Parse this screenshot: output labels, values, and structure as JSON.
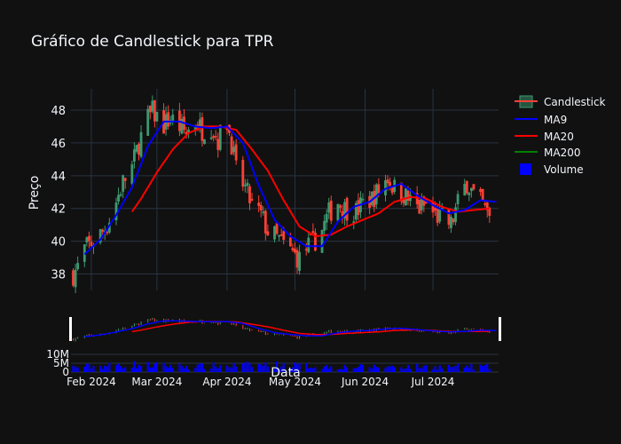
{
  "chart_data": {
    "type": "candlestick",
    "title": "Gráfico de Candlestick para TPR",
    "ylabel": "Preço",
    "xlabel": "Data",
    "ylim": [
      37,
      49.3
    ],
    "yticks": [
      38,
      40,
      42,
      44,
      46,
      48
    ],
    "xrange": [
      "2024-01-23",
      "2024-07-30"
    ],
    "xticks": [
      {
        "date": "2024-02-01",
        "label": "Feb 2024"
      },
      {
        "date": "2024-03-01",
        "label": "Mar 2024"
      },
      {
        "date": "2024-04-01",
        "label": "Apr 2024"
      },
      {
        "date": "2024-05-01",
        "label": "May 2024"
      },
      {
        "date": "2024-06-01",
        "label": "Jun 2024"
      },
      {
        "date": "2024-07-01",
        "label": "Jul 2024"
      }
    ],
    "volume_ylim": [
      0,
      14000000
    ],
    "volume_ticks": [
      {
        "value": 0,
        "label": "0"
      },
      {
        "value": 5000000,
        "label": "5M"
      },
      {
        "value": 10000000,
        "label": "10M"
      }
    ],
    "close_anchors": [
      [
        "2024-01-24",
        38.0
      ],
      [
        "2024-01-26",
        38.4
      ],
      [
        "2024-01-29",
        39.5
      ],
      [
        "2024-02-01",
        39.9
      ],
      [
        "2024-02-05",
        40.4
      ],
      [
        "2024-02-08",
        41.0
      ],
      [
        "2024-02-12",
        42.4
      ],
      [
        "2024-02-15",
        43.6
      ],
      [
        "2024-02-19",
        44.5
      ],
      [
        "2024-02-22",
        46.0
      ],
      [
        "2024-02-26",
        47.5
      ],
      [
        "2024-02-28",
        47.9
      ],
      [
        "2024-03-04",
        47.1
      ],
      [
        "2024-03-07",
        47.5
      ],
      [
        "2024-03-11",
        47.0
      ],
      [
        "2024-03-14",
        46.6
      ],
      [
        "2024-03-18",
        47.3
      ],
      [
        "2024-03-21",
        46.8
      ],
      [
        "2024-03-25",
        47.0
      ],
      [
        "2024-03-28",
        46.2
      ],
      [
        "2024-04-01",
        47.3
      ],
      [
        "2024-04-03",
        46.0
      ],
      [
        "2024-04-05",
        44.3
      ],
      [
        "2024-04-09",
        43.2
      ],
      [
        "2024-04-12",
        42.2
      ],
      [
        "2024-04-16",
        41.6
      ],
      [
        "2024-04-19",
        40.6
      ],
      [
        "2024-04-23",
        40.2
      ],
      [
        "2024-04-26",
        39.8
      ],
      [
        "2024-04-30",
        39.3
      ],
      [
        "2024-05-03",
        38.9
      ],
      [
        "2024-05-06",
        39.6
      ],
      [
        "2024-05-09",
        39.9
      ],
      [
        "2024-05-13",
        40.7
      ],
      [
        "2024-05-16",
        41.7
      ],
      [
        "2024-05-20",
        42.4
      ],
      [
        "2024-05-23",
        42.0
      ],
      [
        "2024-05-28",
        41.8
      ],
      [
        "2024-05-31",
        42.3
      ],
      [
        "2024-06-04",
        42.6
      ],
      [
        "2024-06-07",
        43.1
      ],
      [
        "2024-06-11",
        43.9
      ],
      [
        "2024-06-14",
        43.2
      ],
      [
        "2024-06-18",
        42.9
      ],
      [
        "2024-06-21",
        42.4
      ],
      [
        "2024-06-25",
        42.0
      ],
      [
        "2024-06-28",
        42.2
      ],
      [
        "2024-07-02",
        41.6
      ],
      [
        "2024-07-05",
        41.4
      ],
      [
        "2024-07-09",
        41.0
      ],
      [
        "2024-07-12",
        42.3
      ],
      [
        "2024-07-16",
        43.6
      ],
      [
        "2024-07-19",
        42.8
      ],
      [
        "2024-07-23",
        42.2
      ],
      [
        "2024-07-26",
        41.4
      ]
    ],
    "ma9_anchors": [
      [
        "2024-01-29",
        39.2
      ],
      [
        "2024-02-05",
        40.1
      ],
      [
        "2024-02-12",
        41.6
      ],
      [
        "2024-02-19",
        43.3
      ],
      [
        "2024-02-26",
        45.8
      ],
      [
        "2024-03-04",
        47.3
      ],
      [
        "2024-03-11",
        47.3
      ],
      [
        "2024-03-18",
        47.0
      ],
      [
        "2024-03-25",
        46.9
      ],
      [
        "2024-04-01",
        47.0
      ],
      [
        "2024-04-08",
        46.0
      ],
      [
        "2024-04-15",
        43.4
      ],
      [
        "2024-04-22",
        41.3
      ],
      [
        "2024-04-29",
        40.3
      ],
      [
        "2024-05-06",
        39.7
      ],
      [
        "2024-05-13",
        39.7
      ],
      [
        "2024-05-20",
        41.2
      ],
      [
        "2024-05-27",
        42.1
      ],
      [
        "2024-06-03",
        42.4
      ],
      [
        "2024-06-10",
        43.2
      ],
      [
        "2024-06-17",
        43.5
      ],
      [
        "2024-06-24",
        42.8
      ],
      [
        "2024-07-01",
        42.2
      ],
      [
        "2024-07-08",
        41.7
      ],
      [
        "2024-07-15",
        41.9
      ],
      [
        "2024-07-22",
        42.5
      ],
      [
        "2024-07-29",
        42.4
      ]
    ],
    "ma20_anchors": [
      [
        "2024-02-19",
        41.8
      ],
      [
        "2024-02-23",
        42.6
      ],
      [
        "2024-03-01",
        44.2
      ],
      [
        "2024-03-08",
        45.6
      ],
      [
        "2024-03-15",
        46.6
      ],
      [
        "2024-03-22",
        47.0
      ],
      [
        "2024-03-29",
        47.0
      ],
      [
        "2024-04-05",
        46.8
      ],
      [
        "2024-04-12",
        45.6
      ],
      [
        "2024-04-19",
        44.3
      ],
      [
        "2024-04-26",
        42.5
      ],
      [
        "2024-05-03",
        40.9
      ],
      [
        "2024-05-10",
        40.3
      ],
      [
        "2024-05-17",
        40.4
      ],
      [
        "2024-05-24",
        40.9
      ],
      [
        "2024-05-31",
        41.3
      ],
      [
        "2024-06-07",
        41.7
      ],
      [
        "2024-06-14",
        42.4
      ],
      [
        "2024-06-21",
        42.7
      ],
      [
        "2024-06-28",
        42.6
      ],
      [
        "2024-07-05",
        42.1
      ],
      [
        "2024-07-12",
        41.8
      ],
      [
        "2024-07-19",
        41.9
      ],
      [
        "2024-07-26",
        42.0
      ]
    ],
    "volume_anchors": [
      [
        "2024-01-24",
        3600000
      ],
      [
        "2024-02-05",
        4200000
      ],
      [
        "2024-02-19",
        5300000
      ],
      [
        "2024-03-04",
        4600000
      ],
      [
        "2024-03-18",
        4000000
      ],
      [
        "2024-04-01",
        4400000
      ],
      [
        "2024-04-15",
        5100000
      ],
      [
        "2024-05-01",
        4700000
      ],
      [
        "2024-05-15",
        3800000
      ],
      [
        "2024-06-01",
        3600000
      ],
      [
        "2024-06-15",
        3900000
      ],
      [
        "2024-07-01",
        3700000
      ],
      [
        "2024-07-15",
        4000000
      ],
      [
        "2024-07-30",
        3500000
      ]
    ],
    "series": [
      {
        "name": "Candlestick",
        "color_up": "#3d9970",
        "color_down": "#ff4136"
      },
      {
        "name": "MA9",
        "color": "#0000ff"
      },
      {
        "name": "MA20",
        "color": "#ff0000"
      },
      {
        "name": "MA200",
        "color": "#008000"
      },
      {
        "name": "Volume",
        "color": "#0000ff"
      }
    ]
  },
  "legend": {
    "candlestick": "Candlestick",
    "ma9": "MA9",
    "ma20": "MA20",
    "ma200": "MA200",
    "volume": "Volume"
  },
  "colors": {
    "background": "#111111",
    "grid": "#283442",
    "text": "#f2f5fa",
    "up": "#3d9970",
    "down": "#ff4136",
    "ma9": "#0000ff",
    "ma20": "#ff0000",
    "ma200": "#008000",
    "volume": "#0000ff"
  },
  "legend_placement": "top-right",
  "rangeslider": true
}
